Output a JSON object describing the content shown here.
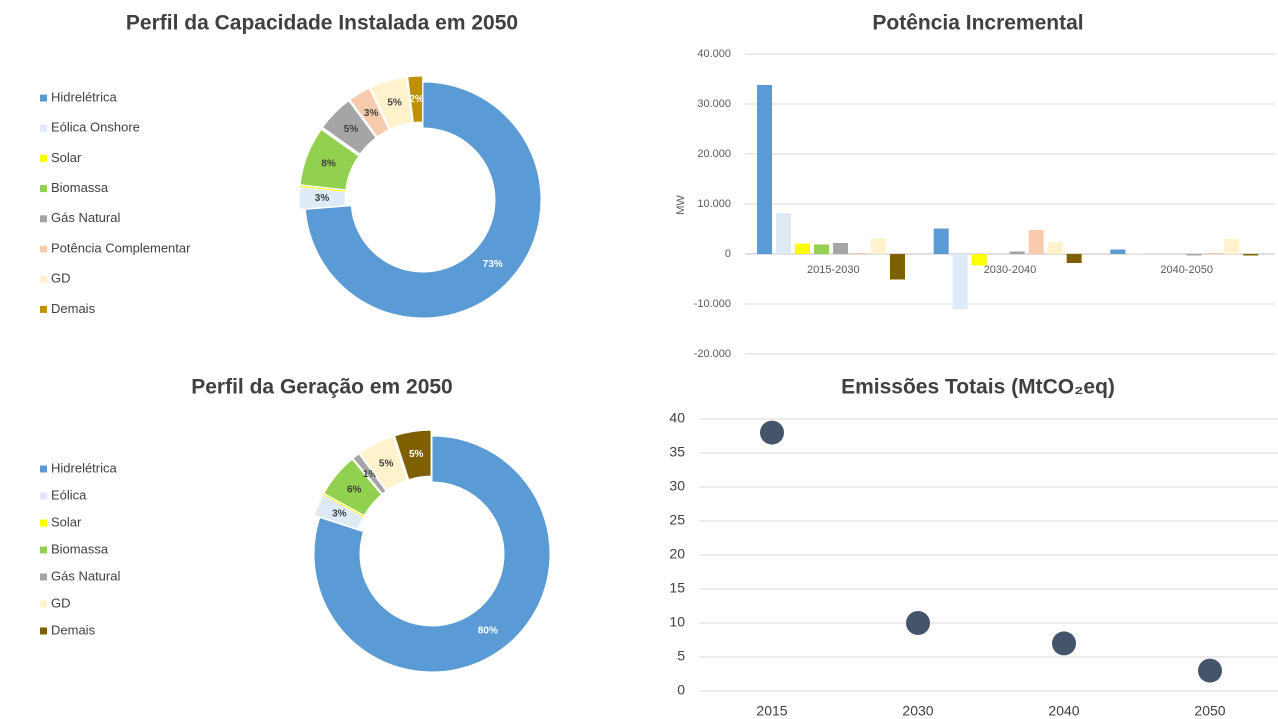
{
  "chart_data": [
    {
      "type": "pie",
      "title": "Perfil da Capacidade Instalada em 2050",
      "categories": [
        "Hidrelétrica",
        "Eólica Onshore",
        "Solar",
        "Biomassa",
        "Gás Natural",
        "Potência Complementar",
        "GD",
        "Demais"
      ],
      "values": [
        73,
        3,
        0,
        8,
        5,
        3,
        5,
        2
      ],
      "value_labels": [
        "73%",
        "3%",
        "0%",
        "8%",
        "5%",
        "3%",
        "5%",
        "2%"
      ],
      "colors": [
        "#5b9bd5",
        "#deebf7",
        "#ffff00",
        "#92d050",
        "#a5a5a5",
        "#f8cbad",
        "#fff2cc",
        "#bf9000"
      ],
      "legend": "left"
    },
    {
      "type": "bar",
      "title": "Potência Incremental",
      "ylabel": "MW",
      "categories": [
        "2015-2030",
        "2030-2040",
        "2040-2050"
      ],
      "series": [
        {
          "color": "#5b9bd5",
          "values": [
            33800,
            5100,
            900
          ]
        },
        {
          "color": "#deebf7",
          "values": [
            8200,
            -11000,
            100
          ]
        },
        {
          "color": "#ffff00",
          "values": [
            2100,
            -2300,
            0
          ]
        },
        {
          "color": "#92d050",
          "values": [
            1900,
            0,
            0
          ]
        },
        {
          "color": "#a5a5a5",
          "values": [
            2200,
            500,
            -300
          ]
        },
        {
          "color": "#f8cbad",
          "values": [
            200,
            4800,
            200
          ]
        },
        {
          "color": "#fff2cc",
          "values": [
            3100,
            2400,
            3000
          ]
        },
        {
          "color": "#7f6000",
          "values": [
            -5100,
            -1800,
            -300
          ]
        }
      ],
      "ylim": [
        -20000,
        40000
      ],
      "yticks": [
        {
          "value": -20000,
          "label": "-20.000"
        },
        {
          "value": -10000,
          "label": "-10.000"
        },
        0,
        {
          "value": 10000,
          "label": "10.000"
        },
        {
          "value": 20000,
          "label": "20.000"
        },
        {
          "value": 30000,
          "label": "30.000"
        },
        {
          "value": 40000,
          "label": "40.000"
        }
      ],
      "grid": true
    },
    {
      "type": "pie",
      "title": "Perfil da Geração em 2050",
      "categories": [
        "Hidrelétrica",
        "Eólica",
        "Solar",
        "Biomassa",
        "Gás Natural",
        "GD",
        "Demais"
      ],
      "values": [
        80,
        3,
        0,
        6,
        1,
        5,
        5
      ],
      "value_labels": [
        "80%",
        "3%",
        "0%",
        "6%",
        "1%",
        "5%",
        "5%"
      ],
      "colors": [
        "#5b9bd5",
        "#deebf7",
        "#ffff00",
        "#92d050",
        "#a5a5a5",
        "#fff2cc",
        "#7f6000"
      ],
      "legend": "left"
    },
    {
      "type": "scatter",
      "title": "Emissões Totais (MtCO₂eq)",
      "categories": [
        "2015",
        "2030",
        "2040",
        "2050"
      ],
      "values": [
        38,
        10,
        7,
        3
      ],
      "color": "#44546a",
      "ylim": [
        0,
        40
      ],
      "yticks": [
        0,
        5,
        10,
        15,
        20,
        25,
        30,
        35,
        40
      ],
      "grid": true
    }
  ]
}
